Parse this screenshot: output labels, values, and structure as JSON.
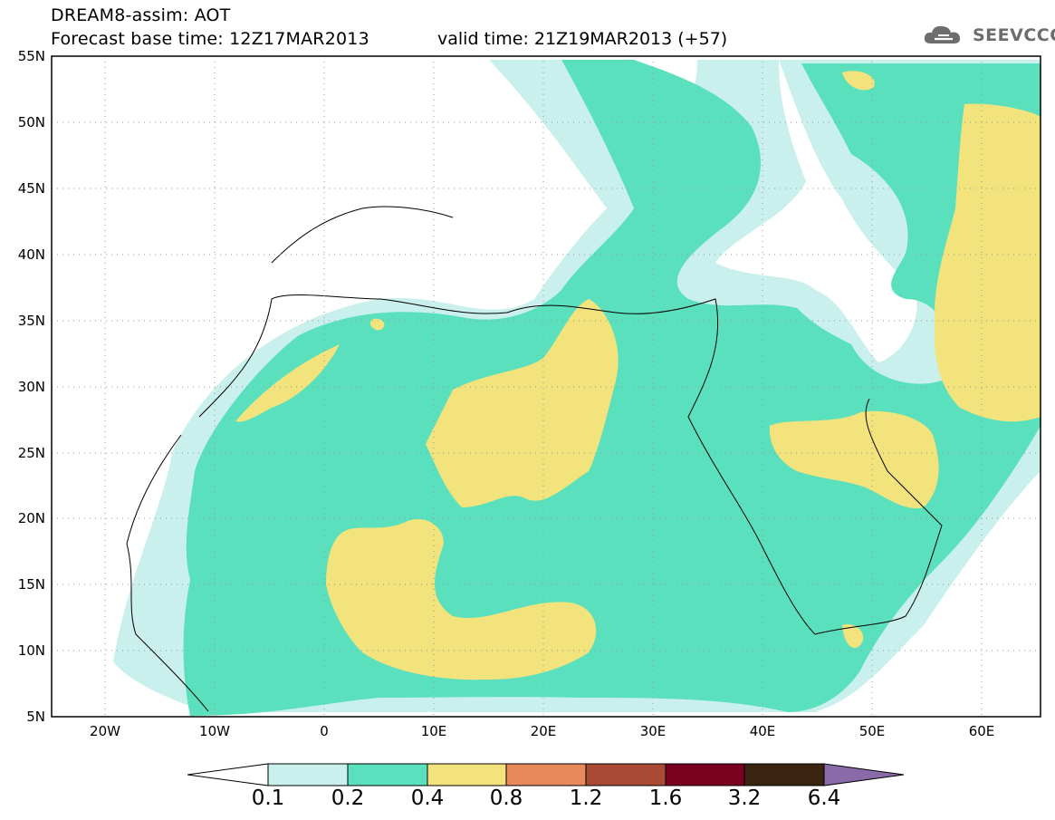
{
  "title": {
    "line1": "DREAM8-assim: AOT",
    "line2": "Forecast base time: 12Z17MAR2013",
    "valid": "valid time: 21Z19MAR2013 (+57)"
  },
  "logo": {
    "text": "SEEVCCC",
    "icon": "cloud-icon"
  },
  "axes": {
    "lat_labels": [
      "55N",
      "50N",
      "45N",
      "40N",
      "35N",
      "30N",
      "25N",
      "20N",
      "15N",
      "10N",
      "5N"
    ],
    "lon_labels": [
      "20W",
      "10W",
      "0",
      "10E",
      "20E",
      "30E",
      "40E",
      "50E",
      "60E"
    ],
    "lat_range": [
      5,
      55
    ],
    "lon_range": [
      -25,
      65
    ]
  },
  "colorbar": {
    "labels": [
      "0.1",
      "0.2",
      "0.4",
      "0.8",
      "1.2",
      "1.6",
      "3.2",
      "6.4"
    ],
    "colors": {
      "below": "#ffffff",
      "c1": "#c9f0ec",
      "c2": "#5be0be",
      "c3": "#f2e37c",
      "c4": "#e8895c",
      "c5": "#a84a34",
      "c6": "#7a0020",
      "c7": "#3a2410",
      "above": "#8a6aa8"
    }
  }
}
